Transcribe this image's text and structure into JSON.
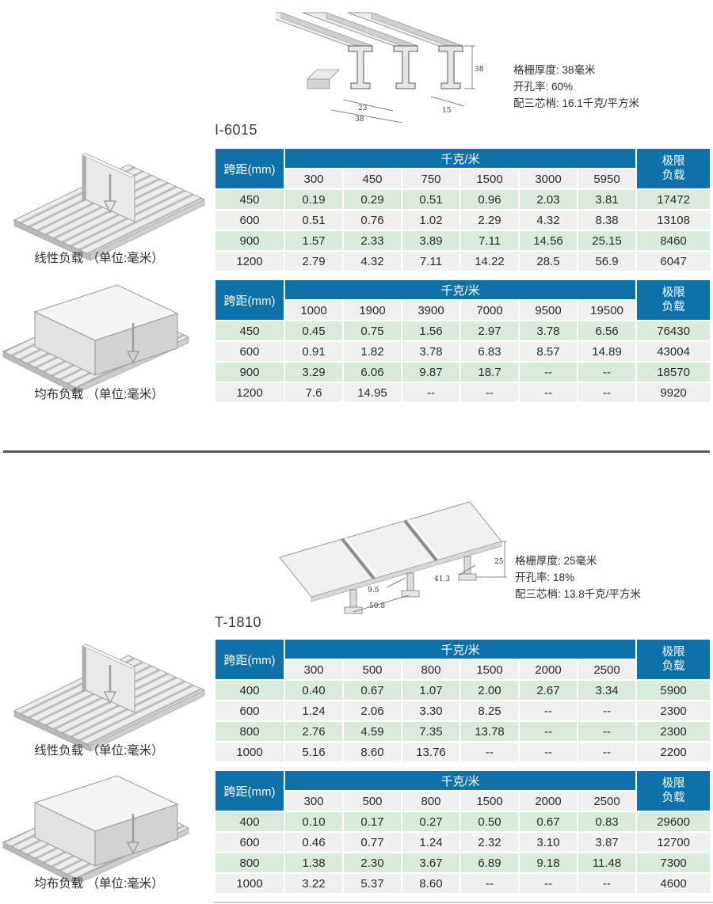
{
  "colors": {
    "header_blue": "#0e71a9",
    "row_green": "#d9ebdb",
    "row_gray": "#f0f0ef",
    "subheader_gray": "#efefef",
    "divider": "#595959"
  },
  "sections": [
    {
      "title": "I-6015",
      "specs": {
        "thickness": "格栅厚度: 38毫米",
        "open_rate": "开孔率: 60%",
        "weight": "配三芯梢: 16.1千克/平方米"
      },
      "drawing_dims": {
        "d1": "38",
        "d2": "15",
        "d3": "23",
        "d4": "38"
      },
      "labels": {
        "linear": "线性负载 （单位:毫米）",
        "uniform": "均布负载 （单位:毫米）"
      },
      "tables": [
        {
          "span_header": "跨距(mm)",
          "unit_header": "千克/米",
          "limit_header": "极限负载",
          "columns": [
            "300",
            "450",
            "750",
            "1500",
            "3000",
            "5950"
          ],
          "rows": [
            [
              "450",
              "0.19",
              "0.29",
              "0.51",
              "0.96",
              "2.03",
              "3.81",
              "17472"
            ],
            [
              "600",
              "0.51",
              "0.76",
              "1.02",
              "2.29",
              "4.32",
              "8.38",
              "13108"
            ],
            [
              "900",
              "1.57",
              "2.33",
              "3.89",
              "7.11",
              "14.56",
              "25.15",
              "8460"
            ],
            [
              "1200",
              "2.79",
              "4.32",
              "7.11",
              "14.22",
              "28.5",
              "56.9",
              "6047"
            ]
          ]
        },
        {
          "span_header": "跨距(mm)",
          "unit_header": "千克/米",
          "limit_header": "极限负载",
          "columns": [
            "1000",
            "1900",
            "3900",
            "7000",
            "9500",
            "19500"
          ],
          "rows": [
            [
              "450",
              "0.45",
              "0.75",
              "1.56",
              "2.97",
              "3.78",
              "6.56",
              "76430"
            ],
            [
              "600",
              "0.91",
              "1.82",
              "3.78",
              "6.83",
              "8.57",
              "14.89",
              "43004"
            ],
            [
              "900",
              "3.29",
              "6.06",
              "9.87",
              "18.7",
              "--",
              "--",
              "18570"
            ],
            [
              "1200",
              "7.6",
              "14.95",
              "--",
              "--",
              "--",
              "--",
              "9920"
            ]
          ]
        }
      ]
    },
    {
      "title": "T-1810",
      "specs": {
        "thickness": "格栅厚度: 25毫米",
        "open_rate": "开孔率: 18%",
        "weight": "配三芯梢: 13.8千克/平方米"
      },
      "drawing_dims": {
        "d1": "25",
        "d2": "41.3",
        "d3": "9.5",
        "d4": "50.8"
      },
      "labels": {
        "linear": "线性负载 （单位:毫米）",
        "uniform": "均布负载 （单位:毫米）"
      },
      "tables": [
        {
          "span_header": "跨距(mm)",
          "unit_header": "千克/米",
          "limit_header": "极限负载",
          "columns": [
            "300",
            "500",
            "800",
            "1500",
            "2000",
            "2500"
          ],
          "rows": [
            [
              "400",
              "0.40",
              "0.67",
              "1.07",
              "2.00",
              "2.67",
              "3.34",
              "5900"
            ],
            [
              "600",
              "1.24",
              "2.06",
              "3.30",
              "8.25",
              "--",
              "--",
              "2300"
            ],
            [
              "800",
              "2.76",
              "4.59",
              "7.35",
              "13.78",
              "--",
              "--",
              "2300"
            ],
            [
              "1000",
              "5.16",
              "8.60",
              "13.76",
              "--",
              "--",
              "--",
              "2200"
            ]
          ]
        },
        {
          "span_header": "跨距(mm)",
          "unit_header": "千克/米",
          "limit_header": "极限负载",
          "columns": [
            "300",
            "500",
            "800",
            "1500",
            "2000",
            "2500"
          ],
          "rows": [
            [
              "400",
              "0.10",
              "0.17",
              "0.27",
              "0.50",
              "0.67",
              "0.83",
              "29600"
            ],
            [
              "600",
              "0.46",
              "0.77",
              "1.24",
              "2.32",
              "3.10",
              "3.87",
              "12700"
            ],
            [
              "800",
              "1.38",
              "2.30",
              "3.67",
              "6.89",
              "9.18",
              "11.48",
              "7300"
            ],
            [
              "1000",
              "3.22",
              "5.37",
              "8.60",
              "--",
              "--",
              "--",
              "4600"
            ]
          ]
        }
      ]
    }
  ]
}
